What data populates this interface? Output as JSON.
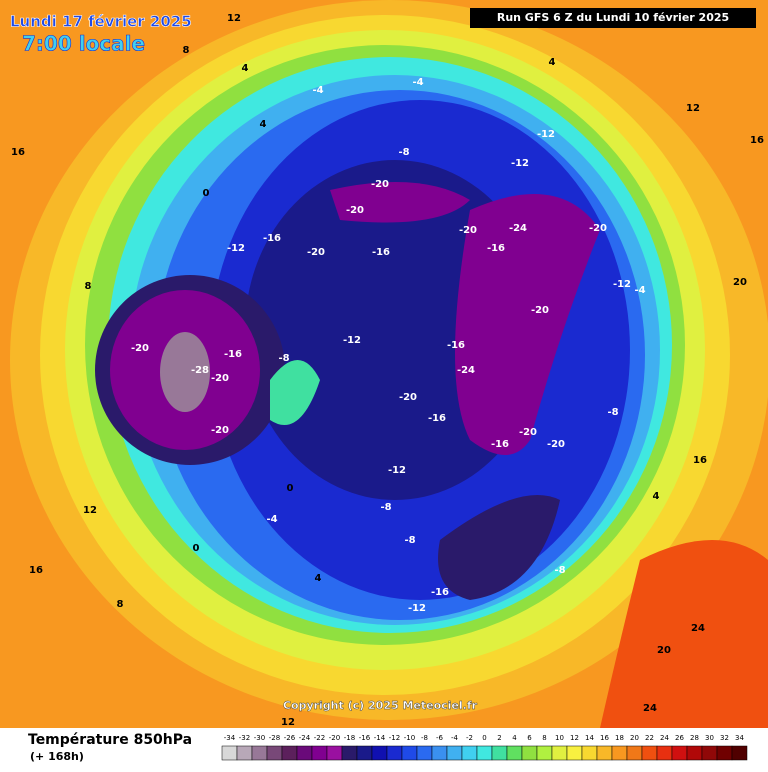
{
  "header": {
    "date": "Lundi 17 février 2025",
    "time": "7:00 locale",
    "run": "Run GFS 6 Z du Lundi 10 février 2025"
  },
  "footer": {
    "title": "Température 850hPa",
    "lead": "(+ 168h)",
    "copyright": "Copyright (c) 2025 Meteociel.fr"
  },
  "legend": {
    "ticks": [
      -34,
      -32,
      -30,
      -28,
      -26,
      -24,
      -22,
      -20,
      -18,
      -16,
      -14,
      -12,
      -10,
      -8,
      -6,
      -4,
      -2,
      0,
      2,
      4,
      6,
      8,
      10,
      12,
      14,
      16,
      18,
      20,
      22,
      24,
      26,
      28,
      30,
      32,
      34
    ],
    "colors": [
      "#d8d8d8",
      "#b8a8b8",
      "#987898",
      "#784878",
      "#5c205c",
      "#6a0a7a",
      "#800090",
      "#9a10a0",
      "#2a1a6a",
      "#1a1a8a",
      "#1010b0",
      "#1a2ad0",
      "#1f4ae8",
      "#2a6af0",
      "#3a90f0",
      "#40b0f0",
      "#40d0f0",
      "#40e8e0",
      "#40e0a0",
      "#60e060",
      "#90e040",
      "#b0f040",
      "#e0f040",
      "#f8f040",
      "#f8d830",
      "#f8b828",
      "#f89820",
      "#f07818",
      "#f05010",
      "#e83010",
      "#d01010",
      "#b00808",
      "#900808",
      "#700000",
      "#500000"
    ]
  },
  "map": {
    "labels": [
      -28,
      -20,
      -20,
      -16,
      -20,
      -24,
      -20,
      -20,
      -24,
      -12,
      -12,
      -20,
      -20,
      -20,
      -16,
      -12,
      -16,
      -12,
      -16,
      -20,
      -16,
      -12,
      -8,
      -8,
      -16,
      -12,
      -16,
      -20,
      -20,
      -8,
      -12,
      -4,
      -4,
      -8,
      0,
      4,
      4,
      4,
      8,
      12,
      12,
      16,
      16,
      8,
      12,
      16,
      20,
      24,
      20,
      24,
      12,
      8,
      0,
      -4,
      0,
      4,
      -8,
      -8,
      16,
      4,
      -4,
      -20,
      -16
    ]
  }
}
